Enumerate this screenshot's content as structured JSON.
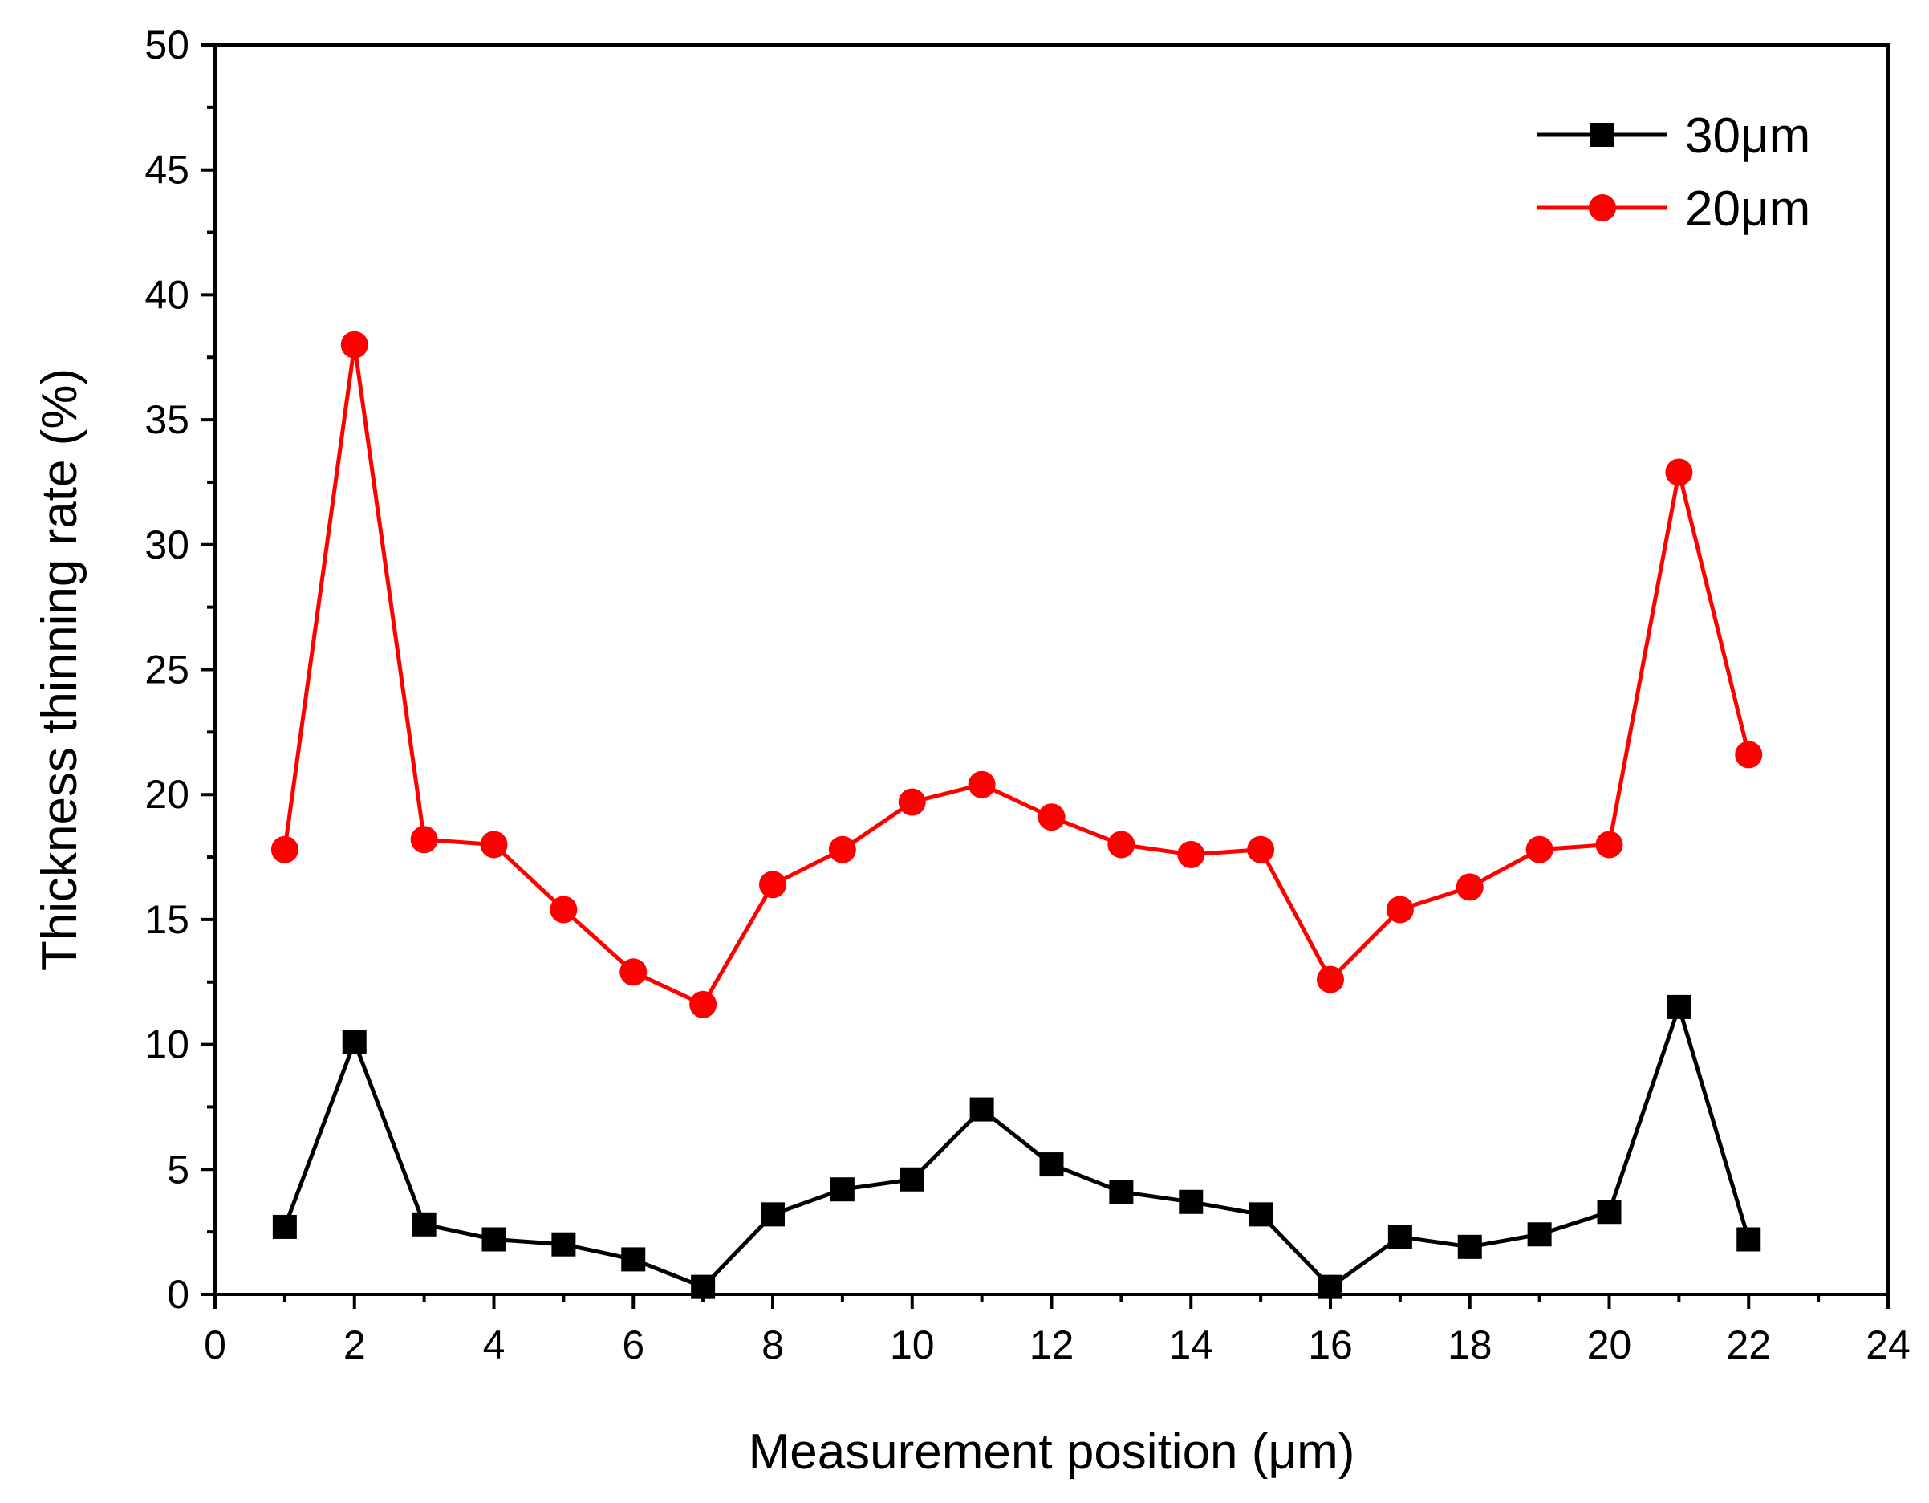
{
  "chart_data": {
    "type": "line",
    "title": "",
    "xlabel": "Measurement position (μm)",
    "ylabel": "Thickness thinning rate (%)",
    "xlim": [
      0,
      24
    ],
    "ylim": [
      0,
      50
    ],
    "xticks": [
      0,
      2,
      4,
      6,
      8,
      10,
      12,
      14,
      16,
      18,
      20,
      22,
      24
    ],
    "yticks": [
      0,
      5,
      10,
      15,
      20,
      25,
      30,
      35,
      40,
      45,
      50
    ],
    "grid": false,
    "legend_position": "top-right",
    "x": [
      1,
      2,
      3,
      4,
      5,
      6,
      7,
      8,
      9,
      10,
      11,
      12,
      13,
      14,
      15,
      16,
      17,
      18,
      19,
      20,
      21,
      22
    ],
    "series": [
      {
        "name": "30μm",
        "color": "#000000",
        "marker": "square",
        "values": [
          2.7,
          10.1,
          2.8,
          2.2,
          2.0,
          1.4,
          0.3,
          3.2,
          4.2,
          4.6,
          7.4,
          5.2,
          4.1,
          3.7,
          3.2,
          0.3,
          2.3,
          1.9,
          2.4,
          3.3,
          11.5,
          2.2
        ]
      },
      {
        "name": "20μm",
        "color": "#ff0000",
        "marker": "circle",
        "values": [
          17.8,
          38.0,
          18.2,
          18.0,
          15.4,
          12.9,
          11.6,
          16.4,
          17.8,
          19.7,
          20.4,
          19.1,
          18.0,
          17.6,
          17.8,
          12.6,
          15.4,
          16.3,
          17.8,
          18.0,
          32.9,
          21.6
        ]
      }
    ]
  }
}
